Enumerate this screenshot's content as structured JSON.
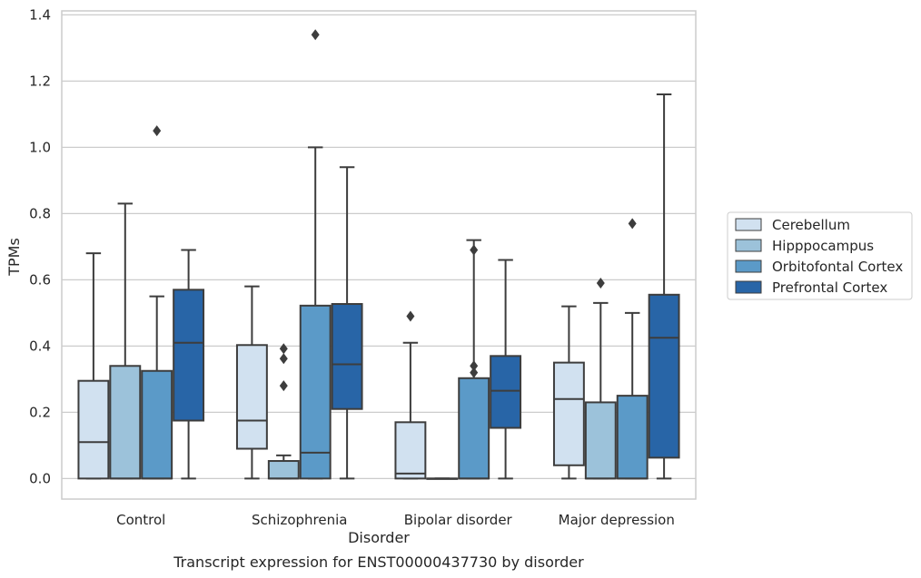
{
  "chart_data": {
    "type": "box",
    "title": "",
    "caption": "Transcript expression for ENST00000437730 by disorder",
    "xlabel": "Disorder",
    "ylabel": "TPMs",
    "ylim": [
      -0.062,
      1.412
    ],
    "yticks": [
      0.0,
      0.2,
      0.4,
      0.6,
      0.8,
      1.0,
      1.2,
      1.4
    ],
    "ytick_labels": [
      "0.0",
      "0.2",
      "0.4",
      "0.6",
      "0.8",
      "1.0",
      "1.2",
      "1.4"
    ],
    "grid": "horizontal",
    "legend_position": "right",
    "categories": [
      "Control",
      "Schizophrenia",
      "Bipolar disorder",
      "Major depression"
    ],
    "series": [
      {
        "name": "Cerebellum",
        "color": "#d1e1f0",
        "boxes": [
          {
            "whislo": 0.0,
            "q1": 0.0,
            "med": 0.11,
            "q3": 0.295,
            "whishi": 0.68,
            "fliers": []
          },
          {
            "whislo": 0.0,
            "q1": 0.09,
            "med": 0.175,
            "q3": 0.403,
            "whishi": 0.58,
            "fliers": []
          },
          {
            "whislo": 0.0,
            "q1": 0.0,
            "med": 0.015,
            "q3": 0.17,
            "whishi": 0.41,
            "fliers": [
              0.49
            ]
          },
          {
            "whislo": 0.0,
            "q1": 0.04,
            "med": 0.24,
            "q3": 0.35,
            "whishi": 0.52,
            "fliers": []
          }
        ]
      },
      {
        "name": "Hipppocampus",
        "color": "#9cc2da",
        "boxes": [
          {
            "whislo": 0.0,
            "q1": 0.0,
            "med": 0.0,
            "q3": 0.34,
            "whishi": 0.83,
            "fliers": []
          },
          {
            "whislo": 0.0,
            "q1": 0.0,
            "med": 0.0,
            "q3": 0.053,
            "whishi": 0.07,
            "fliers": [
              0.28,
              0.362,
              0.392
            ]
          },
          {
            "whislo": 0.0,
            "q1": 0.0,
            "med": 0.0,
            "q3": 0.0,
            "whishi": 0.0,
            "fliers": []
          },
          {
            "whislo": 0.0,
            "q1": 0.0,
            "med": 0.0,
            "q3": 0.23,
            "whishi": 0.53,
            "fliers": [
              0.59
            ]
          }
        ]
      },
      {
        "name": "Orbitofontal Cortex",
        "color": "#5b9ac8",
        "boxes": [
          {
            "whislo": 0.0,
            "q1": 0.0,
            "med": 0.0,
            "q3": 0.325,
            "whishi": 0.55,
            "fliers": [
              1.05
            ]
          },
          {
            "whislo": 0.0,
            "q1": 0.0,
            "med": 0.078,
            "q3": 0.522,
            "whishi": 1.0,
            "fliers": [
              1.34
            ]
          },
          {
            "whislo": 0.0,
            "q1": 0.0,
            "med": 0.0,
            "q3": 0.303,
            "whishi": 0.72,
            "fliers": [
              0.32,
              0.34,
              0.69
            ]
          },
          {
            "whislo": 0.0,
            "q1": 0.0,
            "med": 0.0,
            "q3": 0.25,
            "whishi": 0.5,
            "fliers": [
              0.77
            ]
          }
        ]
      },
      {
        "name": "Prefrontal Cortex",
        "color": "#2865a7",
        "boxes": [
          {
            "whislo": 0.0,
            "q1": 0.175,
            "med": 0.41,
            "q3": 0.57,
            "whishi": 0.69,
            "fliers": []
          },
          {
            "whislo": 0.0,
            "q1": 0.21,
            "med": 0.345,
            "q3": 0.527,
            "whishi": 0.94,
            "fliers": []
          },
          {
            "whislo": 0.0,
            "q1": 0.153,
            "med": 0.265,
            "q3": 0.37,
            "whishi": 0.66,
            "fliers": []
          },
          {
            "whislo": 0.0,
            "q1": 0.063,
            "med": 0.425,
            "q3": 0.555,
            "whishi": 1.16,
            "fliers": []
          }
        ]
      }
    ]
  }
}
